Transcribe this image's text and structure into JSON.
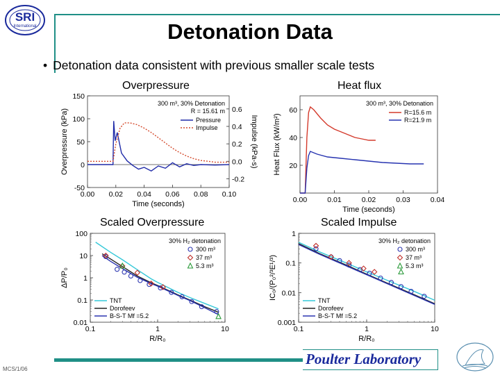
{
  "slide": {
    "title": "Detonation Data",
    "bullet": "Detonation data consistent with previous smaller scale tests",
    "labels": {
      "overpressure": "Overpressure",
      "heatflux": "Heat flux",
      "scaled_overpressure": "Scaled Overpressure",
      "scaled_impulse": "Scaled Impulse"
    },
    "footer": "Poulter Laboratory",
    "corner": "MCS/1/06",
    "logo_text": "SRI",
    "logo_subtext": "International"
  },
  "chart_data": [
    {
      "type": "line",
      "xlabel": "Time (seconds)",
      "ylabel": "Overpressure (kPa)",
      "y2label": "Impulse (kPa-s)",
      "xlim": [
        0,
        0.1
      ],
      "ylim": [
        -50,
        150
      ],
      "y2lim": [
        -0.3,
        0.75
      ],
      "xticks": [
        "0.00",
        "0.02",
        "0.04",
        "0.06",
        "0.08",
        "0.10"
      ],
      "yticks": [
        "-50",
        "0",
        "50",
        "100",
        "150"
      ],
      "y2ticks": [
        "-0.2",
        "0.0",
        "0.2",
        "0.4",
        "0.6"
      ],
      "annotation": [
        "300 m³, 30% Detonation",
        "R = 15.61 m"
      ],
      "legend": "top-right",
      "series": [
        {
          "name": "Pressure",
          "color": "#1f2aa8",
          "axis": "y",
          "x": [
            0,
            0.018,
            0.0185,
            0.0195,
            0.021,
            0.024,
            0.028,
            0.032,
            0.036,
            0.04,
            0.045,
            0.05,
            0.055,
            0.06,
            0.065,
            0.07,
            0.075,
            0.08,
            0.09,
            0.1
          ],
          "y": [
            0,
            0,
            95,
            52,
            70,
            25,
            8,
            -2,
            -10,
            -6,
            -14,
            -3,
            -8,
            4,
            -5,
            2,
            -2,
            0,
            -1,
            0
          ]
        },
        {
          "name": "Impulse",
          "color": "#d44a2c",
          "axis": "y2",
          "x": [
            0,
            0.018,
            0.02,
            0.023,
            0.026,
            0.03,
            0.035,
            0.04,
            0.045,
            0.05,
            0.055,
            0.06,
            0.065,
            0.07,
            0.075,
            0.08,
            0.085,
            0.09,
            0.1
          ],
          "y": [
            0,
            0,
            0.2,
            0.38,
            0.44,
            0.44,
            0.42,
            0.38,
            0.33,
            0.27,
            0.21,
            0.15,
            0.1,
            0.06,
            0.03,
            0.01,
            0.0,
            -0.01,
            -0.01
          ]
        }
      ]
    },
    {
      "type": "line",
      "xlabel": "Time (seconds)",
      "ylabel": "Heat Flux (kW/m²)",
      "xlim": [
        0,
        0.04
      ],
      "ylim": [
        0,
        70
      ],
      "xticks": [
        "0.00",
        "0.01",
        "0.02",
        "0.03",
        "0.04"
      ],
      "yticks": [
        "20",
        "40",
        "60"
      ],
      "annotation": [
        "300 m³, 30% Detonation"
      ],
      "legend": "top-right",
      "series": [
        {
          "name": "R=15.6 m",
          "color": "#d43a2c",
          "x": [
            0,
            0.0015,
            0.002,
            0.0025,
            0.003,
            0.004,
            0.006,
            0.008,
            0.01,
            0.012,
            0.014,
            0.016,
            0.018,
            0.02,
            0.022
          ],
          "y": [
            0,
            0,
            40,
            58,
            62,
            60,
            54,
            49,
            46,
            44,
            42,
            40,
            39,
            38,
            38
          ]
        },
        {
          "name": "R=21.9 m",
          "color": "#2633b0",
          "x": [
            0,
            0.0015,
            0.002,
            0.0025,
            0.003,
            0.005,
            0.008,
            0.012,
            0.016,
            0.02,
            0.024,
            0.028,
            0.032,
            0.036
          ],
          "y": [
            0,
            0,
            18,
            27,
            30,
            28,
            26,
            25,
            24,
            23,
            22,
            21.5,
            21,
            21
          ]
        }
      ]
    },
    {
      "type": "scatter",
      "scale": "log-log",
      "xlabel": "R/R₀",
      "ylabel": "ΔP/P₀",
      "xlim": [
        0.1,
        10
      ],
      "ylim": [
        0.01,
        100
      ],
      "xticks": [
        "0.1",
        "1",
        "10"
      ],
      "yticks": [
        "0.01",
        "0.1",
        "1",
        "10",
        "100"
      ],
      "annotation": [
        "30% H₂ detonation"
      ],
      "legend": "top-right / bottom-left",
      "series": [
        {
          "name": "TNT",
          "kind": "line",
          "color": "#34c8d8",
          "x": [
            0.12,
            0.2,
            0.3,
            0.5,
            0.8,
            1,
            2,
            3,
            5,
            8
          ],
          "y": [
            40,
            14,
            6.5,
            2.3,
            0.9,
            0.62,
            0.22,
            0.13,
            0.07,
            0.04
          ]
        },
        {
          "name": "Dorofeev",
          "kind": "line",
          "color": "#222222",
          "x": [
            0.15,
            0.2,
            0.3,
            0.5,
            0.8,
            1,
            2,
            3,
            5,
            8
          ],
          "y": [
            12,
            7,
            3.2,
            1.2,
            0.6,
            0.45,
            0.17,
            0.1,
            0.05,
            0.028
          ]
        },
        {
          "name": "B-S-T Mf =5.2",
          "kind": "line",
          "color": "#2a34b0",
          "x": [
            0.15,
            0.2,
            0.3,
            0.5,
            0.8,
            1,
            2,
            3,
            5,
            8
          ],
          "y": [
            10,
            5.5,
            2.6,
            1.05,
            0.55,
            0.42,
            0.16,
            0.095,
            0.045,
            0.022
          ]
        },
        {
          "name": "300 m³",
          "kind": "marker",
          "marker": "circle",
          "color": "#2a34b0",
          "x": [
            0.17,
            0.25,
            0.32,
            0.4,
            0.55,
            0.75,
            1.1,
            1.6,
            2.3,
            3.2,
            4.5,
            7.5
          ],
          "y": [
            9,
            2.4,
            1.8,
            1.2,
            0.75,
            0.5,
            0.35,
            0.22,
            0.14,
            0.085,
            0.05,
            0.03
          ]
        },
        {
          "name": "37 m³",
          "kind": "marker",
          "marker": "diamond",
          "color": "#c0302a",
          "x": [
            0.17,
            0.3,
            0.5,
            0.8,
            1.2
          ],
          "y": [
            10,
            3.4,
            1.7,
            0.55,
            0.38
          ]
        },
        {
          "name": "5.3 m³",
          "kind": "marker",
          "marker": "triangle",
          "color": "#2a9a3a",
          "x": [
            0.3,
            8.0
          ],
          "y": [
            3.4,
            0.018
          ]
        }
      ]
    },
    {
      "type": "scatter",
      "scale": "log-log",
      "xlabel": "R/R₀",
      "ylabel": "IC₀/(P₀²/³E¹/³)",
      "xlim": [
        0.1,
        10
      ],
      "ylim": [
        0.001,
        1
      ],
      "xticks": [
        "0.1",
        "1",
        "10"
      ],
      "yticks": [
        "0.001",
        "0.01",
        "0.1",
        "1"
      ],
      "annotation": [
        "30% H₂ detonation"
      ],
      "legend": "top-right / bottom-left",
      "series": [
        {
          "name": "TNT",
          "kind": "line",
          "color": "#34c8d8",
          "x": [
            0.1,
            0.2,
            0.5,
            1,
            2,
            5,
            10
          ],
          "y": [
            0.5,
            0.24,
            0.1,
            0.05,
            0.026,
            0.011,
            0.0055
          ]
        },
        {
          "name": "Dorofeev",
          "kind": "line",
          "color": "#222222",
          "x": [
            0.1,
            0.2,
            0.5,
            1,
            2,
            5,
            10
          ],
          "y": [
            0.45,
            0.21,
            0.085,
            0.042,
            0.021,
            0.0085,
            0.0042
          ]
        },
        {
          "name": "B-S-T Mf =5.2",
          "kind": "line",
          "color": "#2a34b0",
          "x": [
            0.1,
            0.2,
            0.5,
            1,
            2,
            5,
            10
          ],
          "y": [
            0.42,
            0.2,
            0.08,
            0.04,
            0.02,
            0.008,
            0.004
          ]
        },
        {
          "name": "300 m³",
          "kind": "marker",
          "marker": "circle",
          "color": "#2a34b0",
          "x": [
            0.18,
            0.3,
            0.4,
            0.55,
            0.8,
            1.1,
            1.6,
            2.3,
            3.2,
            4.5,
            7
          ],
          "y": [
            0.3,
            0.16,
            0.12,
            0.085,
            0.06,
            0.045,
            0.031,
            0.022,
            0.016,
            0.011,
            0.0075
          ]
        },
        {
          "name": "37 m³",
          "kind": "marker",
          "marker": "diamond",
          "color": "#c0302a",
          "x": [
            0.18,
            0.3,
            0.55,
            0.9,
            1.3
          ],
          "y": [
            0.38,
            0.16,
            0.1,
            0.065,
            0.05
          ]
        },
        {
          "name": "5.3 m³",
          "kind": "marker",
          "marker": "triangle",
          "color": "#2a9a3a",
          "x": [
            3.2
          ],
          "y": [
            0.05
          ]
        }
      ]
    }
  ]
}
